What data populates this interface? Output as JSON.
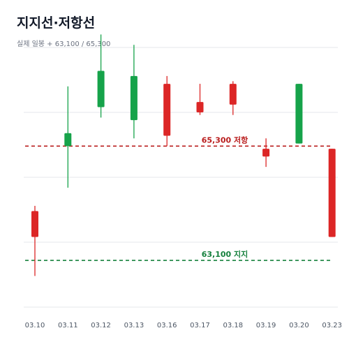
{
  "colors": {
    "up": "#16a34a",
    "down": "#dc2626",
    "support": "#15803d",
    "resistance": "#b91c1c",
    "grid": "#e5e7eb"
  },
  "chart_data": {
    "type": "candlestick",
    "title": "지지선·저항선",
    "subtitle": "실제 일봉 + 63,100 / 65,300",
    "ylim": [
      62200,
      67200
    ],
    "grid": true,
    "categories": [
      "03.10",
      "03.11",
      "03.12",
      "03.13",
      "03.16",
      "03.17",
      "03.18",
      "03.19",
      "03.20",
      "03.23"
    ],
    "candles": [
      {
        "date": "03.10",
        "open": 64050,
        "close": 63550,
        "high": 64150,
        "low": 62800
      },
      {
        "date": "03.11",
        "open": 65300,
        "close": 65550,
        "high": 66450,
        "low": 64500
      },
      {
        "date": "03.12",
        "open": 66050,
        "close": 66750,
        "high": 67450,
        "low": 65850
      },
      {
        "date": "03.13",
        "open": 65800,
        "close": 66650,
        "high": 67250,
        "low": 65450
      },
      {
        "date": "03.16",
        "open": 66500,
        "close": 65500,
        "high": 66650,
        "low": 65300
      },
      {
        "date": "03.17",
        "open": 66150,
        "close": 65950,
        "high": 66500,
        "low": 65900
      },
      {
        "date": "03.18",
        "open": 66500,
        "close": 66100,
        "high": 66550,
        "low": 65900
      },
      {
        "date": "03.19",
        "open": 65250,
        "close": 65100,
        "high": 65450,
        "low": 64900
      },
      {
        "date": "03.20",
        "open": 65350,
        "close": 66500,
        "high": 66500,
        "low": 65350
      },
      {
        "date": "03.23",
        "open": 65250,
        "close": 63550,
        "high": 65250,
        "low": 63550
      }
    ],
    "levels": [
      {
        "value": 65300,
        "label": "65,300 저항",
        "kind": "resistance"
      },
      {
        "value": 63100,
        "label": "63,100 지지",
        "kind": "support"
      }
    ]
  }
}
